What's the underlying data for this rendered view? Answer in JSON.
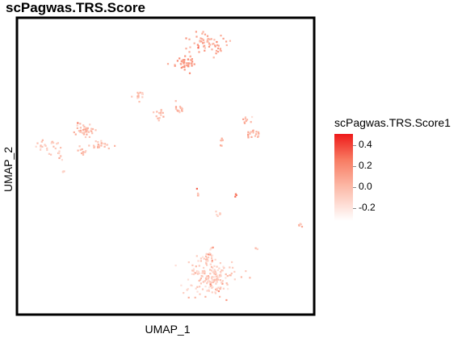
{
  "chart_data": {
    "type": "scatter",
    "title": "scPagwas.TRS.Score",
    "xlabel": "UMAP_1",
    "ylabel": "UMAP_2",
    "xlim": [
      0,
      100
    ],
    "ylim": [
      0,
      100
    ],
    "grid": false,
    "legend": {
      "title": "scPagwas.TRS.Score1",
      "placement": "right",
      "ticks": [
        "0.4",
        "0.2",
        "0.0",
        "-0.2"
      ],
      "tick_values": [
        0.4,
        0.2,
        0.0,
        -0.2
      ],
      "range": [
        -0.35,
        0.5
      ],
      "colors": {
        "high": "#ee1a1a",
        "mid": "#f87c63",
        "low": "#fcb8a6",
        "lowest": "#ffffff"
      }
    },
    "clusters": [
      {
        "x": 64,
        "y": 92,
        "sx": 3.2,
        "sy": 1.8,
        "n": 60,
        "score": 0.05
      },
      {
        "x": 57,
        "y": 85,
        "sx": 2.0,
        "sy": 1.5,
        "n": 45,
        "score": 0.1
      },
      {
        "x": 41,
        "y": 74,
        "sx": 0.9,
        "sy": 0.9,
        "n": 15,
        "score": -0.05
      },
      {
        "x": 48,
        "y": 68,
        "sx": 0.9,
        "sy": 1.0,
        "n": 14,
        "score": -0.02
      },
      {
        "x": 55,
        "y": 70,
        "sx": 0.8,
        "sy": 0.9,
        "n": 15,
        "score": 0.0
      },
      {
        "x": 22,
        "y": 62,
        "sx": 1.8,
        "sy": 1.2,
        "n": 40,
        "score": -0.03
      },
      {
        "x": 27,
        "y": 57,
        "sx": 1.8,
        "sy": 0.7,
        "n": 22,
        "score": -0.05
      },
      {
        "x": 21,
        "y": 55,
        "sx": 0.8,
        "sy": 0.8,
        "n": 10,
        "score": -0.05
      },
      {
        "x": 9,
        "y": 57,
        "sx": 2.5,
        "sy": 0.9,
        "n": 24,
        "score": -0.08
      },
      {
        "x": 14,
        "y": 54,
        "sx": 0.8,
        "sy": 1.0,
        "n": 8,
        "score": -0.08
      },
      {
        "x": 15,
        "y": 48,
        "sx": 0.4,
        "sy": 0.5,
        "n": 4,
        "score": -0.1
      },
      {
        "x": 78,
        "y": 66,
        "sx": 0.8,
        "sy": 0.6,
        "n": 10,
        "score": 0.0
      },
      {
        "x": 80,
        "y": 61,
        "sx": 1.2,
        "sy": 0.8,
        "n": 18,
        "score": 0.02
      },
      {
        "x": 69,
        "y": 58,
        "sx": 0.3,
        "sy": 1.0,
        "n": 6,
        "score": 0.0
      },
      {
        "x": 61,
        "y": 41,
        "sx": 0.4,
        "sy": 0.7,
        "n": 5,
        "score": -0.1
      },
      {
        "x": 68,
        "y": 34,
        "sx": 0.5,
        "sy": 1.2,
        "n": 6,
        "score": -0.15
      },
      {
        "x": 74,
        "y": 40,
        "sx": 0.3,
        "sy": 0.3,
        "n": 3,
        "score": 0.3
      },
      {
        "x": 96,
        "y": 30,
        "sx": 0.6,
        "sy": 0.4,
        "n": 6,
        "score": 0.0
      },
      {
        "x": 81,
        "y": 22,
        "sx": 0.4,
        "sy": 0.3,
        "n": 3,
        "score": -0.1
      },
      {
        "x": 66,
        "y": 12,
        "sx": 4.0,
        "sy": 3.5,
        "n": 170,
        "score": -0.1
      },
      {
        "x": 65,
        "y": 19,
        "sx": 1.0,
        "sy": 0.8,
        "n": 14,
        "score": -0.12
      },
      {
        "x": 66,
        "y": 22,
        "sx": 0.5,
        "sy": 0.6,
        "n": 4,
        "score": -0.12
      }
    ]
  }
}
